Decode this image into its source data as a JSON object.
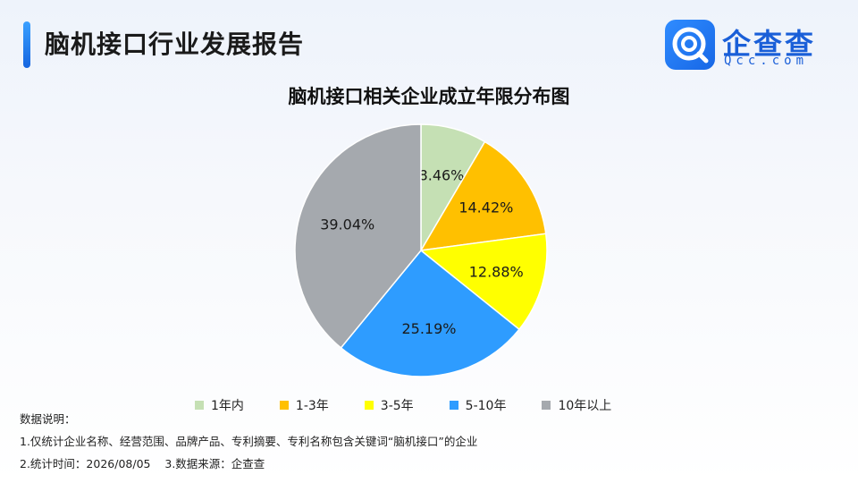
{
  "header": {
    "title": "脑机接口行业发展报告"
  },
  "logo": {
    "name": "企查查",
    "domain": "Qcc.com"
  },
  "chart_data": {
    "type": "pie",
    "title": "脑机接口相关企业成立年限分布图",
    "categories": [
      "1年内",
      "1-3年",
      "3-5年",
      "5-10年",
      "10年以上"
    ],
    "values": [
      8.46,
      14.42,
      12.88,
      25.19,
      39.04
    ],
    "value_labels": [
      "8.46%",
      "14.42%",
      "12.88%",
      "25.19%",
      "39.04%"
    ],
    "colors": [
      "#c5e0b4",
      "#ffc000",
      "#ffff00",
      "#2e9cff",
      "#a5a9ae"
    ],
    "legend_position": "bottom"
  },
  "notes": {
    "heading": "数据说明：",
    "line1": "1.仅统计企业名称、经营范围、品牌产品、专利摘要、专利名称包含关键词“脑机接口”的企业",
    "line2": "2.统计时间：2026/08/05    3.数据来源：企查查"
  }
}
